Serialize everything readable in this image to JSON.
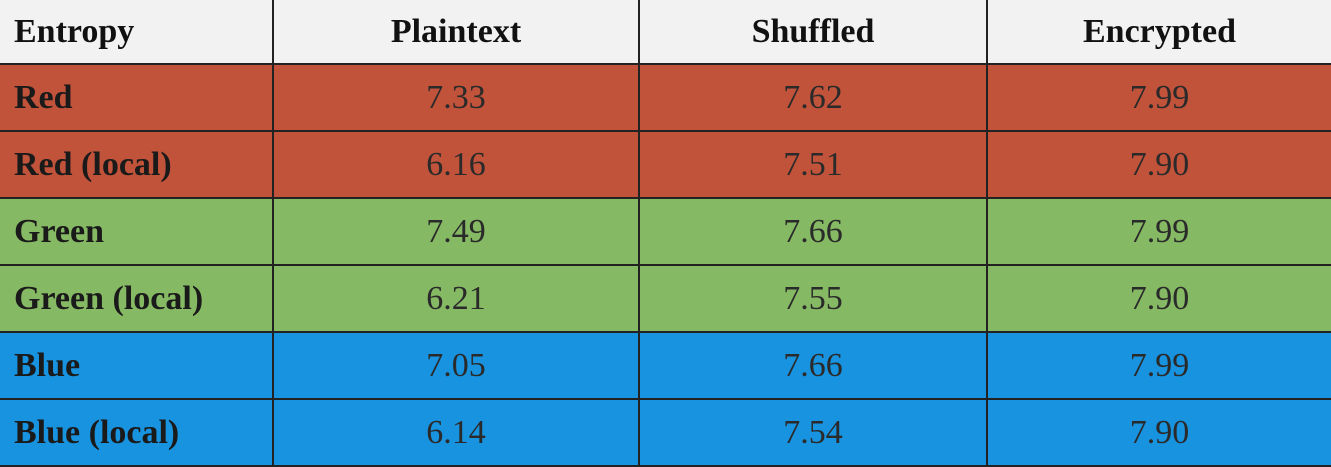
{
  "table": {
    "headers": [
      "Entropy",
      "Plaintext",
      "Shuffled",
      "Encrypted"
    ],
    "rows": [
      {
        "label": "Red",
        "plaintext": "7.33",
        "shuffled": "7.62",
        "encrypted": "7.99"
      },
      {
        "label": "Red (local)",
        "plaintext": "6.16",
        "shuffled": "7.51",
        "encrypted": "7.90"
      },
      {
        "label": "Green",
        "plaintext": "7.49",
        "shuffled": "7.66",
        "encrypted": "7.99"
      },
      {
        "label": "Green (local)",
        "plaintext": "6.21",
        "shuffled": "7.55",
        "encrypted": "7.90"
      },
      {
        "label": "Blue",
        "plaintext": "7.05",
        "shuffled": "7.66",
        "encrypted": "7.99"
      },
      {
        "label": "Blue (local)",
        "plaintext": "6.14",
        "shuffled": "7.54",
        "encrypted": "7.90"
      }
    ]
  },
  "colors": {
    "header_bg": "#f2f2f2",
    "red_row": "#c0533a",
    "green_row": "#86b964",
    "blue_row": "#1893e0",
    "grid_line": "#222222"
  }
}
